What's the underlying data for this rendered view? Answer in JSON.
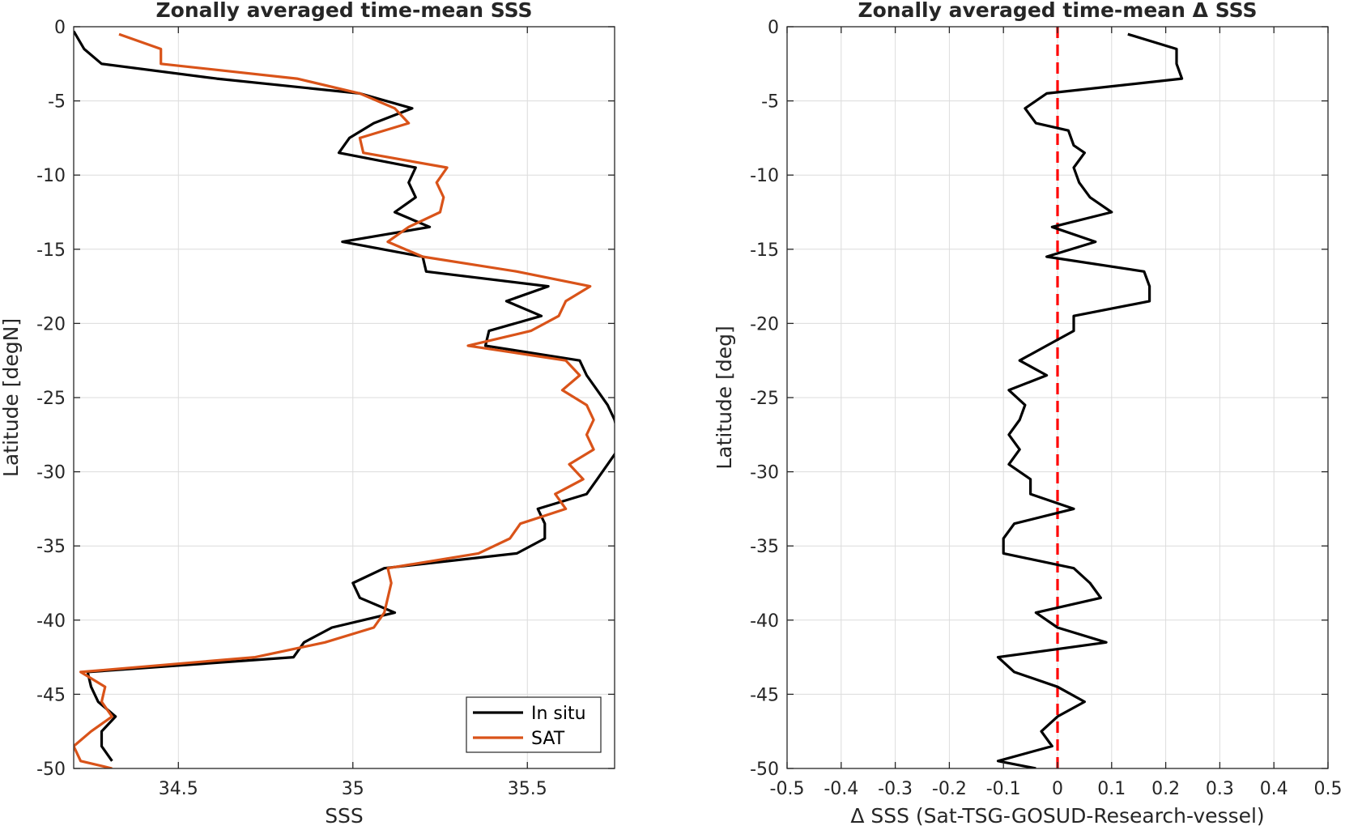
{
  "chart_data": [
    {
      "type": "line",
      "title": "Zonally averaged time-mean SSS",
      "xlabel": "SSS",
      "ylabel": "Latitude [degN]",
      "xlim": [
        34.2,
        35.75
      ],
      "ylim": [
        -50,
        0
      ],
      "xticks": [
        "34.5",
        "35",
        "35.5"
      ],
      "xtick_values": [
        34.5,
        35.0,
        35.5
      ],
      "yticks": [
        "0",
        "-5",
        "-10",
        "-15",
        "-20",
        "-25",
        "-30",
        "-35",
        "-40",
        "-45",
        "-50"
      ],
      "ytick_values": [
        0,
        -5,
        -10,
        -15,
        -20,
        -25,
        -30,
        -35,
        -40,
        -45,
        -50
      ],
      "grid": true,
      "legend": {
        "position": "bottom-right"
      },
      "series": [
        {
          "name": "In situ",
          "color": "#000000",
          "points": [
            [
              34.2,
              -0.3
            ],
            [
              34.23,
              -1.5
            ],
            [
              34.28,
              -2.5
            ],
            [
              34.61,
              -3.5
            ],
            [
              35.02,
              -4.5
            ],
            [
              35.17,
              -5.5
            ],
            [
              35.06,
              -6.5
            ],
            [
              34.99,
              -7.5
            ],
            [
              34.96,
              -8.5
            ],
            [
              35.18,
              -9.5
            ],
            [
              35.16,
              -10.5
            ],
            [
              35.18,
              -11.5
            ],
            [
              35.12,
              -12.5
            ],
            [
              35.22,
              -13.5
            ],
            [
              34.97,
              -14.5
            ],
            [
              35.2,
              -15.5
            ],
            [
              35.21,
              -16.5
            ],
            [
              35.56,
              -17.5
            ],
            [
              35.44,
              -18.5
            ],
            [
              35.54,
              -19.5
            ],
            [
              35.39,
              -20.5
            ],
            [
              35.38,
              -21.5
            ],
            [
              35.65,
              -22.5
            ],
            [
              35.67,
              -23.5
            ],
            [
              35.7,
              -24.5
            ],
            [
              35.73,
              -25.5
            ],
            [
              35.75,
              -26.5
            ],
            [
              35.76,
              -27.5
            ],
            [
              35.76,
              -28.5
            ],
            [
              35.73,
              -29.5
            ],
            [
              35.7,
              -30.5
            ],
            [
              35.67,
              -31.5
            ],
            [
              35.53,
              -32.5
            ],
            [
              35.55,
              -33.5
            ],
            [
              35.55,
              -34.5
            ],
            [
              35.47,
              -35.5
            ],
            [
              35.09,
              -36.5
            ],
            [
              35.0,
              -37.5
            ],
            [
              35.02,
              -38.5
            ],
            [
              35.12,
              -39.5
            ],
            [
              34.94,
              -40.5
            ],
            [
              34.86,
              -41.5
            ],
            [
              34.83,
              -42.5
            ],
            [
              34.24,
              -43.5
            ],
            [
              34.25,
              -44.5
            ],
            [
              34.27,
              -45.5
            ],
            [
              34.32,
              -46.5
            ],
            [
              34.28,
              -47.5
            ],
            [
              34.28,
              -48.5
            ],
            [
              34.31,
              -49.5
            ]
          ]
        },
        {
          "name": "SAT",
          "color": "#d95319",
          "points": [
            [
              34.33,
              -0.5
            ],
            [
              34.45,
              -1.5
            ],
            [
              34.45,
              -2.5
            ],
            [
              34.84,
              -3.5
            ],
            [
              35.02,
              -4.5
            ],
            [
              35.12,
              -5.5
            ],
            [
              35.16,
              -6.5
            ],
            [
              35.02,
              -7.5
            ],
            [
              35.03,
              -8.5
            ],
            [
              35.27,
              -9.5
            ],
            [
              35.24,
              -10.5
            ],
            [
              35.26,
              -11.5
            ],
            [
              35.25,
              -12.5
            ],
            [
              35.16,
              -13.5
            ],
            [
              35.1,
              -14.5
            ],
            [
              35.2,
              -15.5
            ],
            [
              35.47,
              -16.5
            ],
            [
              35.68,
              -17.5
            ],
            [
              35.61,
              -18.5
            ],
            [
              35.59,
              -19.5
            ],
            [
              35.51,
              -20.5
            ],
            [
              35.33,
              -21.5
            ],
            [
              35.61,
              -22.5
            ],
            [
              35.65,
              -23.5
            ],
            [
              35.6,
              -24.5
            ],
            [
              35.67,
              -25.5
            ],
            [
              35.69,
              -26.5
            ],
            [
              35.67,
              -27.5
            ],
            [
              35.69,
              -28.5
            ],
            [
              35.62,
              -29.5
            ],
            [
              35.66,
              -30.5
            ],
            [
              35.58,
              -31.5
            ],
            [
              35.61,
              -32.5
            ],
            [
              35.48,
              -33.5
            ],
            [
              35.45,
              -34.5
            ],
            [
              35.36,
              -35.5
            ],
            [
              35.1,
              -36.5
            ],
            [
              35.11,
              -37.5
            ],
            [
              35.1,
              -38.5
            ],
            [
              35.09,
              -39.5
            ],
            [
              35.06,
              -40.5
            ],
            [
              34.92,
              -41.5
            ],
            [
              34.72,
              -42.5
            ],
            [
              34.22,
              -43.5
            ],
            [
              34.29,
              -44.5
            ],
            [
              34.28,
              -45.5
            ],
            [
              34.31,
              -46.5
            ],
            [
              34.25,
              -47.5
            ],
            [
              34.2,
              -48.5
            ],
            [
              34.22,
              -49.5
            ],
            [
              34.31,
              -50
            ]
          ]
        }
      ]
    },
    {
      "type": "line",
      "title": "Zonally averaged time-mean Δ SSS",
      "xlabel": "Δ SSS (Sat-TSG-GOSUD-Research-vessel)",
      "ylabel": "Latitude [deg]",
      "xlim": [
        -0.5,
        0.5
      ],
      "ylim": [
        -50,
        0
      ],
      "xticks": [
        "-0.5",
        "-0.4",
        "-0.3",
        "-0.2",
        "-0.1",
        "0",
        "0.1",
        "0.2",
        "0.3",
        "0.4",
        "0.5"
      ],
      "xtick_values": [
        -0.5,
        -0.4,
        -0.3,
        -0.2,
        -0.1,
        0,
        0.1,
        0.2,
        0.3,
        0.4,
        0.5
      ],
      "yticks": [
        "0",
        "-5",
        "-10",
        "-15",
        "-20",
        "-25",
        "-30",
        "-35",
        "-40",
        "-45",
        "-50"
      ],
      "ytick_values": [
        0,
        -5,
        -10,
        -15,
        -20,
        -25,
        -30,
        -35,
        -40,
        -45,
        -50
      ],
      "grid": true,
      "reference_line": {
        "x": 0,
        "color": "#ff0000",
        "style": "dashed"
      },
      "series": [
        {
          "color": "#000000",
          "points": [
            [
              0.13,
              -0.5
            ],
            [
              0.22,
              -1.5
            ],
            [
              0.22,
              -2.5
            ],
            [
              0.23,
              -3.5
            ],
            [
              -0.02,
              -4.5
            ],
            [
              -0.06,
              -5.5
            ],
            [
              -0.04,
              -6.5
            ],
            [
              0.02,
              -7
            ],
            [
              0.03,
              -8
            ],
            [
              0.05,
              -8.5
            ],
            [
              0.03,
              -9.5
            ],
            [
              0.04,
              -10.5
            ],
            [
              0.06,
              -11.5
            ],
            [
              0.1,
              -12.5
            ],
            [
              -0.01,
              -13.5
            ],
            [
              0.07,
              -14.5
            ],
            [
              -0.02,
              -15.5
            ],
            [
              0.16,
              -16.5
            ],
            [
              0.17,
              -17.5
            ],
            [
              0.17,
              -18.5
            ],
            [
              0.03,
              -19.5
            ],
            [
              0.03,
              -20.5
            ],
            [
              -0.02,
              -21.5
            ],
            [
              -0.07,
              -22.5
            ],
            [
              -0.02,
              -23.5
            ],
            [
              -0.09,
              -24.5
            ],
            [
              -0.06,
              -25.5
            ],
            [
              -0.07,
              -26.5
            ],
            [
              -0.09,
              -27.5
            ],
            [
              -0.07,
              -28.5
            ],
            [
              -0.09,
              -29.5
            ],
            [
              -0.05,
              -30.5
            ],
            [
              -0.05,
              -31.5
            ],
            [
              0.03,
              -32.5
            ],
            [
              -0.08,
              -33.5
            ],
            [
              -0.1,
              -34.5
            ],
            [
              -0.1,
              -35.5
            ],
            [
              0.03,
              -36.5
            ],
            [
              0.06,
              -37.5
            ],
            [
              0.08,
              -38.5
            ],
            [
              -0.04,
              -39.5
            ],
            [
              0.0,
              -40.5
            ],
            [
              0.09,
              -41.5
            ],
            [
              -0.11,
              -42.5
            ],
            [
              -0.08,
              -43.5
            ],
            [
              0.0,
              -44.5
            ],
            [
              0.05,
              -45.5
            ],
            [
              0.0,
              -46.5
            ],
            [
              -0.03,
              -47.5
            ],
            [
              -0.01,
              -48.5
            ],
            [
              -0.11,
              -49.5
            ],
            [
              -0.04,
              -50
            ]
          ]
        }
      ]
    }
  ]
}
